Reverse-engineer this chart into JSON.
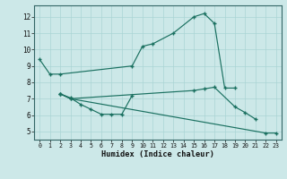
{
  "xlabel": "Humidex (Indice chaleur)",
  "bg_color": "#cce8e8",
  "grid_color": "#aad4d4",
  "line_color": "#1a7060",
  "xlim": [
    -0.5,
    23.5
  ],
  "ylim": [
    4.5,
    12.7
  ],
  "yticks": [
    5,
    6,
    7,
    8,
    9,
    10,
    11,
    12
  ],
  "xticks": [
    0,
    1,
    2,
    3,
    4,
    5,
    6,
    7,
    8,
    9,
    10,
    11,
    12,
    13,
    14,
    15,
    16,
    17,
    18,
    19,
    20,
    21,
    22,
    23
  ],
  "lines": [
    {
      "comment": "top arc: starts 9.4, dips to 8.5, flat ~8.5, rises to 9.0 at x=9, then 10.2,10.3,11.0(13),12.0(15),12.2(16),11.6(17), drops to 7.6(18-19)",
      "x": [
        0,
        1,
        2,
        9,
        10,
        11,
        13,
        15,
        16,
        17,
        18,
        19
      ],
      "y": [
        9.4,
        8.5,
        8.5,
        9.0,
        10.2,
        10.35,
        11.0,
        12.0,
        12.2,
        11.6,
        7.65,
        7.65
      ]
    },
    {
      "comment": "bottom dip: x=2->7.3, 3->7.05, 4->6.65, 5->6.35, 6->6.05, 7->6.05, 8->6.05, 9->7.2",
      "x": [
        2,
        3,
        4,
        5,
        6,
        7,
        8,
        9
      ],
      "y": [
        7.3,
        7.05,
        6.65,
        6.35,
        6.05,
        6.05,
        6.05,
        7.2
      ]
    },
    {
      "x": [
        2,
        3,
        22,
        23
      ],
      "y": [
        7.3,
        7.0,
        4.9,
        4.9
      ]
    },
    {
      "comment": "middle flat line x=2->7.3, x=3->7.0, jumps to x=15->7.5, 16->7.6, 17->7.7, 19->6.5, 20->6.15, 21->5.75",
      "x": [
        2,
        3,
        15,
        16,
        17,
        19,
        20,
        21
      ],
      "y": [
        7.3,
        7.0,
        7.5,
        7.6,
        7.7,
        6.5,
        6.15,
        5.75
      ]
    }
  ]
}
